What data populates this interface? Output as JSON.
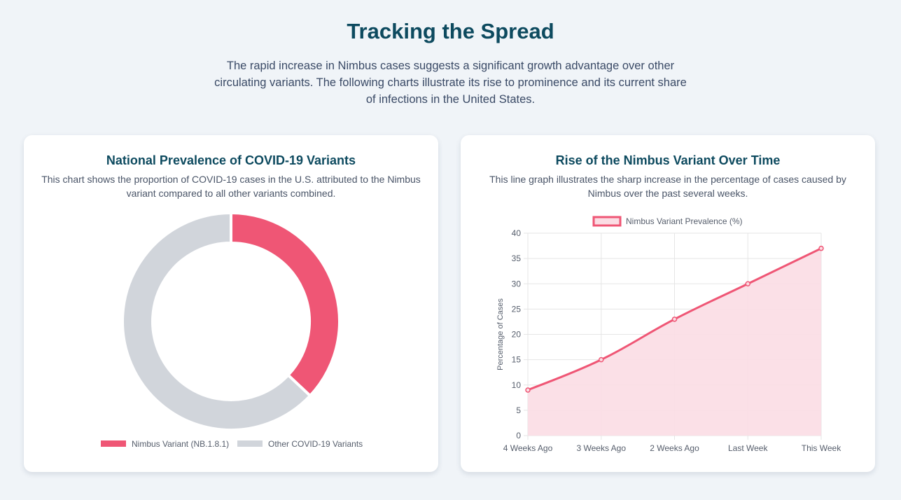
{
  "page": {
    "title": "Tracking the Spread",
    "intro": "The rapid increase in Nimbus cases suggests a significant growth advantage over other circulating variants. The following charts illustrate its rise to prominence and its current share of infections in the United States."
  },
  "colors": {
    "nimbus": "#ef5675",
    "nimbus_fill": "#fbdde4",
    "other": "#d1d5db",
    "heading": "#0d4a5f"
  },
  "cards": {
    "donut": {
      "title": "National Prevalence of COVID-19 Variants",
      "subtitle": "This chart shows the proportion of COVID-19 cases in the U.S. attributed to the Nimbus variant compared to all other variants combined."
    },
    "line": {
      "title": "Rise of the Nimbus Variant Over Time",
      "subtitle": "This line graph illustrates the sharp increase in the percentage of cases caused by Nimbus over the past several weeks."
    }
  },
  "chart_data": [
    {
      "type": "pie",
      "variant": "doughnut",
      "labels": [
        "Nimbus Variant (NB.1.8.1)",
        "Other COVID-19 Variants"
      ],
      "values": [
        37,
        63
      ],
      "colors": [
        "#ef5675",
        "#d1d5db"
      ],
      "legend": "bottom"
    },
    {
      "type": "area",
      "categories": [
        "4 Weeks Ago",
        "3 Weeks Ago",
        "2 Weeks Ago",
        "Last Week",
        "This Week"
      ],
      "series": [
        {
          "name": "Nimbus Variant Prevalence (%)",
          "values": [
            9,
            15,
            23,
            30,
            37
          ]
        }
      ],
      "ylabel": "Percentage of Cases",
      "xlabel": "",
      "ylim": [
        0,
        40
      ],
      "yticks": [
        "0",
        "5",
        "10",
        "15",
        "20",
        "25",
        "30",
        "35",
        "40"
      ],
      "grid": true,
      "legend": "top"
    }
  ]
}
